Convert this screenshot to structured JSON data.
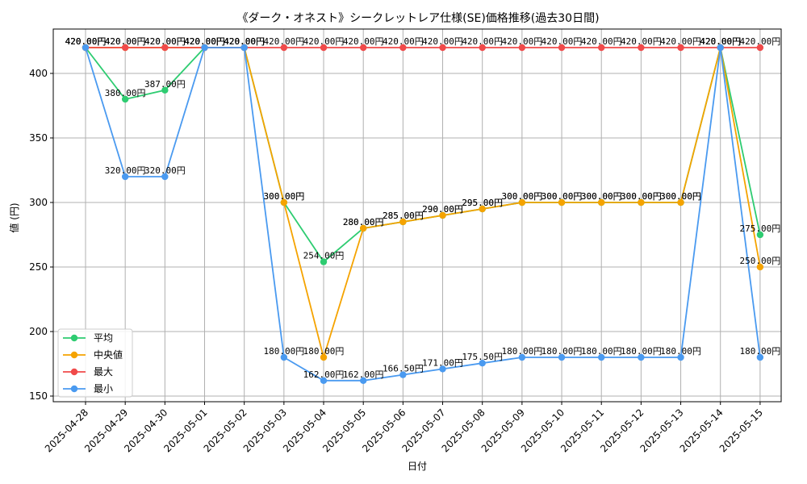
{
  "chart_data": {
    "type": "line",
    "title": "《ダーク・オネスト》シークレットレア仕様(SE)価格推移(過去30日間)",
    "xlabel": "日付",
    "ylabel": "値 (円)",
    "ylim": [
      150,
      430
    ],
    "yticks": [
      150,
      200,
      250,
      300,
      350,
      400
    ],
    "grid": true,
    "legend_position": "lower-left",
    "categories": [
      "2025-04-28",
      "2025-04-29",
      "2025-04-30",
      "2025-05-01",
      "2025-05-02",
      "2025-05-03",
      "2025-05-04",
      "2025-05-05",
      "2025-05-06",
      "2025-05-07",
      "2025-05-08",
      "2025-05-09",
      "2025-05-10",
      "2025-05-11",
      "2025-05-12",
      "2025-05-13",
      "2025-05-14",
      "2025-05-15"
    ],
    "series": [
      {
        "name": "平均",
        "color": "#2ecc71",
        "values": [
          420,
          380,
          387,
          420,
          420,
          300,
          254,
          280,
          285,
          290,
          295,
          300,
          300,
          300,
          300,
          300,
          420,
          275
        ],
        "labels": [
          "420.00円",
          "380.00円",
          "387.00円",
          "420.00円",
          "420.00円",
          "300.00円",
          "254.00円",
          "280.00円",
          "285.00円",
          "290.00円",
          "295.00円",
          "300.00円",
          "300.00円",
          "300.00円",
          "300.00円",
          "300.00円",
          "420.00円",
          "275.00円"
        ]
      },
      {
        "name": "中央値",
        "color": "#f5a300",
        "values": [
          420,
          420,
          420,
          420,
          420,
          300,
          180,
          280,
          285,
          290,
          295,
          300,
          300,
          300,
          300,
          300,
          420,
          250
        ],
        "labels": [
          "420.00円",
          "420.00円",
          "420.00円",
          "420.00円",
          "420.00円",
          "300.00円",
          "180.00円",
          "280.00円",
          "285.00円",
          "290.00円",
          "295.00円",
          "300.00円",
          "300.00円",
          "300.00円",
          "300.00円",
          "300.00円",
          "420.00円",
          "250.00円"
        ]
      },
      {
        "name": "最大",
        "color": "#f04a4a",
        "values": [
          420,
          420,
          420,
          420,
          420,
          420,
          420,
          420,
          420,
          420,
          420,
          420,
          420,
          420,
          420,
          420,
          420,
          420
        ],
        "labels": [
          "420.00円",
          "420.00円",
          "420.00円",
          "420.00円",
          "420.00円",
          "420.00円",
          "420.00円",
          "420.00円",
          "420.00円",
          "420.00円",
          "420.00円",
          "420.00円",
          "420.00円",
          "420.00円",
          "420.00円",
          "420.00円",
          "420.00円",
          "420.00円"
        ]
      },
      {
        "name": "最小",
        "color": "#4a9af0",
        "values": [
          420,
          320,
          320,
          420,
          420,
          180,
          162,
          162,
          166.5,
          171,
          175.5,
          180,
          180,
          180,
          180,
          180,
          420,
          180
        ],
        "labels": [
          "420.00円",
          "320.00円",
          "320.00円",
          "420.00円",
          "420.00円",
          "180.00円",
          "162.00円",
          "162.00円",
          "166.50円",
          "171.00円",
          "175.50円",
          "180.00円",
          "180.00円",
          "180.00円",
          "180.00円",
          "180.00円",
          "420.00円",
          "180.00円"
        ]
      }
    ]
  }
}
